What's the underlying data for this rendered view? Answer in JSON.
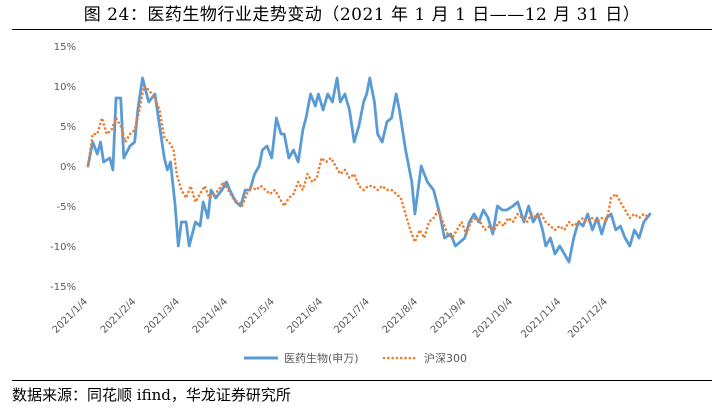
{
  "title": "图 24：医药生物行业走势变动（2021 年 1 月 1 日——12 月 31 日）",
  "source": "数据来源：同花顺 ifind，华龙证券研究所",
  "chart_data": {
    "type": "line",
    "ylim": [
      -15,
      15
    ],
    "yticks": [
      15,
      10,
      5,
      0,
      -5,
      -10,
      -15
    ],
    "ytick_labels": [
      "15%",
      "10%",
      "5%",
      "0%",
      "-5%",
      "-10%",
      "-15%"
    ],
    "xlim": [
      "2021-01-04",
      "2021-12-31"
    ],
    "xtick_labels": [
      "2021/1/4",
      "2021/2/4",
      "2021/3/4",
      "2021/4/4",
      "2021/5/4",
      "2021/6/4",
      "2021/7/4",
      "2021/8/4",
      "2021/9/4",
      "2021/10/4",
      "2021/11/4",
      "2021/12/4"
    ],
    "legend_position": "bottom",
    "series": [
      {
        "name": "医药生物(申万)",
        "color": "#5B9BD5",
        "style": "solid",
        "points": [
          [
            "2021-01-04",
            0
          ],
          [
            "2021-01-07",
            3
          ],
          [
            "2021-01-10",
            1.5
          ],
          [
            "2021-01-12",
            3
          ],
          [
            "2021-01-14",
            0.5
          ],
          [
            "2021-01-18",
            1
          ],
          [
            "2021-01-20",
            -0.5
          ],
          [
            "2021-01-22",
            8.5
          ],
          [
            "2021-01-25",
            8.5
          ],
          [
            "2021-01-27",
            1
          ],
          [
            "2021-01-31",
            2.5
          ],
          [
            "2021-02-03",
            3
          ],
          [
            "2021-02-05",
            7
          ],
          [
            "2021-02-08",
            11
          ],
          [
            "2021-02-12",
            8
          ],
          [
            "2021-02-16",
            9
          ],
          [
            "2021-02-19",
            5
          ],
          [
            "2021-02-22",
            1
          ],
          [
            "2021-02-24",
            -0.5
          ],
          [
            "2021-02-26",
            0.5
          ],
          [
            "2021-03-01",
            -5
          ],
          [
            "2021-03-03",
            -10
          ],
          [
            "2021-03-05",
            -7
          ],
          [
            "2021-03-08",
            -7
          ],
          [
            "2021-03-10",
            -10
          ],
          [
            "2021-03-14",
            -7
          ],
          [
            "2021-03-17",
            -7.5
          ],
          [
            "2021-03-19",
            -4.5
          ],
          [
            "2021-03-22",
            -6.5
          ],
          [
            "2021-03-24",
            -3
          ],
          [
            "2021-03-27",
            -4
          ],
          [
            "2021-03-31",
            -3
          ],
          [
            "2021-04-03",
            -2
          ],
          [
            "2021-04-05",
            -3
          ],
          [
            "2021-04-09",
            -4.5
          ],
          [
            "2021-04-12",
            -5
          ],
          [
            "2021-04-15",
            -3
          ],
          [
            "2021-04-18",
            -3
          ],
          [
            "2021-04-21",
            -1
          ],
          [
            "2021-04-24",
            0
          ],
          [
            "2021-04-26",
            2
          ],
          [
            "2021-04-29",
            2.5
          ],
          [
            "2021-05-02",
            1
          ],
          [
            "2021-05-05",
            6
          ],
          [
            "2021-05-08",
            4
          ],
          [
            "2021-05-10",
            4
          ],
          [
            "2021-05-13",
            1
          ],
          [
            "2021-05-16",
            2
          ],
          [
            "2021-05-19",
            0.5
          ],
          [
            "2021-05-22",
            4.5
          ],
          [
            "2021-05-24",
            6
          ],
          [
            "2021-05-27",
            9
          ],
          [
            "2021-05-30",
            7.5
          ],
          [
            "2021-06-01",
            9
          ],
          [
            "2021-06-04",
            7
          ],
          [
            "2021-06-07",
            9
          ],
          [
            "2021-06-10",
            8
          ],
          [
            "2021-06-13",
            11
          ],
          [
            "2021-06-15",
            8
          ],
          [
            "2021-06-18",
            9
          ],
          [
            "2021-06-21",
            7
          ],
          [
            "2021-06-24",
            3
          ],
          [
            "2021-06-27",
            5
          ],
          [
            "2021-06-30",
            8
          ],
          [
            "2021-07-02",
            9
          ],
          [
            "2021-07-04",
            11
          ],
          [
            "2021-07-07",
            8
          ],
          [
            "2021-07-09",
            4
          ],
          [
            "2021-07-12",
            3
          ],
          [
            "2021-07-15",
            5.5
          ],
          [
            "2021-07-18",
            6
          ],
          [
            "2021-07-21",
            9
          ],
          [
            "2021-07-23",
            7
          ],
          [
            "2021-07-27",
            2
          ],
          [
            "2021-07-31",
            -2
          ],
          [
            "2021-08-02",
            -6
          ],
          [
            "2021-08-06",
            0
          ],
          [
            "2021-08-10",
            -2
          ],
          [
            "2021-08-14",
            -3
          ],
          [
            "2021-08-18",
            -6
          ],
          [
            "2021-08-21",
            -9
          ],
          [
            "2021-08-25",
            -8.5
          ],
          [
            "2021-08-28",
            -10
          ],
          [
            "2021-08-31",
            -9.5
          ],
          [
            "2021-09-03",
            -9
          ],
          [
            "2021-09-06",
            -7
          ],
          [
            "2021-09-09",
            -6
          ],
          [
            "2021-09-12",
            -7
          ],
          [
            "2021-09-15",
            -5.5
          ],
          [
            "2021-09-18",
            -6.5
          ],
          [
            "2021-09-21",
            -8.5
          ],
          [
            "2021-09-24",
            -5
          ],
          [
            "2021-09-27",
            -5.5
          ],
          [
            "2021-09-30",
            -5.5
          ],
          [
            "2021-10-04",
            -5
          ],
          [
            "2021-10-07",
            -4.5
          ],
          [
            "2021-10-11",
            -7
          ],
          [
            "2021-10-14",
            -5
          ],
          [
            "2021-10-17",
            -7
          ],
          [
            "2021-10-20",
            -6
          ],
          [
            "2021-10-23",
            -8
          ],
          [
            "2021-10-25",
            -10
          ],
          [
            "2021-10-28",
            -9
          ],
          [
            "2021-10-31",
            -11
          ],
          [
            "2021-11-03",
            -10
          ],
          [
            "2021-11-06",
            -11
          ],
          [
            "2021-11-09",
            -12
          ],
          [
            "2021-11-12",
            -9
          ],
          [
            "2021-11-15",
            -7
          ],
          [
            "2021-11-18",
            -7.5
          ],
          [
            "2021-11-21",
            -6
          ],
          [
            "2021-11-24",
            -8
          ],
          [
            "2021-11-27",
            -6.5
          ],
          [
            "2021-11-30",
            -8.5
          ],
          [
            "2021-12-03",
            -6.5
          ],
          [
            "2021-12-06",
            -6
          ],
          [
            "2021-12-09",
            -8
          ],
          [
            "2021-12-12",
            -7.5
          ],
          [
            "2021-12-15",
            -9
          ],
          [
            "2021-12-18",
            -10
          ],
          [
            "2021-12-21",
            -8
          ],
          [
            "2021-12-24",
            -9
          ],
          [
            "2021-12-27",
            -7
          ],
          [
            "2021-12-31",
            -6
          ]
        ]
      },
      {
        "name": "沪深300",
        "color": "#ED7D31",
        "style": "dotted",
        "points": [
          [
            "2021-01-04",
            0
          ],
          [
            "2021-01-07",
            4
          ],
          [
            "2021-01-10",
            4
          ],
          [
            "2021-01-13",
            6
          ],
          [
            "2021-01-16",
            4
          ],
          [
            "2021-01-19",
            4.5
          ],
          [
            "2021-01-22",
            6
          ],
          [
            "2021-01-25",
            5
          ],
          [
            "2021-01-28",
            3
          ],
          [
            "2021-01-31",
            4
          ],
          [
            "2021-02-03",
            4.5
          ],
          [
            "2021-02-06",
            7
          ],
          [
            "2021-02-09",
            10
          ],
          [
            "2021-02-12",
            9.5
          ],
          [
            "2021-02-16",
            8.5
          ],
          [
            "2021-02-19",
            7
          ],
          [
            "2021-02-22",
            3.5
          ],
          [
            "2021-02-25",
            3
          ],
          [
            "2021-02-28",
            2
          ],
          [
            "2021-03-02",
            -1
          ],
          [
            "2021-03-05",
            -3
          ],
          [
            "2021-03-08",
            -4
          ],
          [
            "2021-03-11",
            -2.5
          ],
          [
            "2021-03-14",
            -4.5
          ],
          [
            "2021-03-17",
            -3.5
          ],
          [
            "2021-03-20",
            -2.5
          ],
          [
            "2021-03-23",
            -4
          ],
          [
            "2021-03-26",
            -3.5
          ],
          [
            "2021-03-29",
            -3
          ],
          [
            "2021-04-01",
            -2
          ],
          [
            "2021-04-04",
            -3
          ],
          [
            "2021-04-07",
            -4
          ],
          [
            "2021-04-10",
            -4.5
          ],
          [
            "2021-04-13",
            -5
          ],
          [
            "2021-04-16",
            -3.5
          ],
          [
            "2021-04-19",
            -2.5
          ],
          [
            "2021-04-22",
            -3
          ],
          [
            "2021-04-25",
            -2.5
          ],
          [
            "2021-04-28",
            -3
          ],
          [
            "2021-05-01",
            -3.5
          ],
          [
            "2021-05-04",
            -3
          ],
          [
            "2021-05-07",
            -4
          ],
          [
            "2021-05-10",
            -5
          ],
          [
            "2021-05-13",
            -4
          ],
          [
            "2021-05-16",
            -3.5
          ],
          [
            "2021-05-19",
            -2
          ],
          [
            "2021-05-22",
            -3
          ],
          [
            "2021-05-25",
            -1
          ],
          [
            "2021-05-28",
            -2
          ],
          [
            "2021-05-31",
            -1.5
          ],
          [
            "2021-06-03",
            1
          ],
          [
            "2021-06-06",
            0.5
          ],
          [
            "2021-06-09",
            1
          ],
          [
            "2021-06-12",
            0
          ],
          [
            "2021-06-15",
            -1
          ],
          [
            "2021-06-18",
            -0.5
          ],
          [
            "2021-06-21",
            -1.5
          ],
          [
            "2021-06-24",
            -1
          ],
          [
            "2021-06-27",
            -2.5
          ],
          [
            "2021-06-30",
            -3
          ],
          [
            "2021-07-03",
            -2.5
          ],
          [
            "2021-07-06",
            -2.5
          ],
          [
            "2021-07-09",
            -3
          ],
          [
            "2021-07-12",
            -2.5
          ],
          [
            "2021-07-15",
            -3
          ],
          [
            "2021-07-18",
            -3
          ],
          [
            "2021-07-21",
            -3.5
          ],
          [
            "2021-07-24",
            -4
          ],
          [
            "2021-07-27",
            -6
          ],
          [
            "2021-07-30",
            -8
          ],
          [
            "2021-08-02",
            -9.5
          ],
          [
            "2021-08-05",
            -8
          ],
          [
            "2021-08-08",
            -9
          ],
          [
            "2021-08-11",
            -7
          ],
          [
            "2021-08-14",
            -6.5
          ],
          [
            "2021-08-17",
            -5.5
          ],
          [
            "2021-08-20",
            -7
          ],
          [
            "2021-08-23",
            -8.5
          ],
          [
            "2021-08-26",
            -9
          ],
          [
            "2021-08-29",
            -8
          ],
          [
            "2021-09-01",
            -7
          ],
          [
            "2021-09-04",
            -8.5
          ],
          [
            "2021-09-07",
            -7
          ],
          [
            "2021-09-10",
            -6.5
          ],
          [
            "2021-09-13",
            -7
          ],
          [
            "2021-09-16",
            -8
          ],
          [
            "2021-09-19",
            -7.5
          ],
          [
            "2021-09-22",
            -8
          ],
          [
            "2021-09-25",
            -7
          ],
          [
            "2021-09-28",
            -7.5
          ],
          [
            "2021-10-01",
            -6.5
          ],
          [
            "2021-10-04",
            -7
          ],
          [
            "2021-10-07",
            -6
          ],
          [
            "2021-10-10",
            -6.5
          ],
          [
            "2021-10-13",
            -7
          ],
          [
            "2021-10-16",
            -6
          ],
          [
            "2021-10-19",
            -6.5
          ],
          [
            "2021-10-22",
            -6
          ],
          [
            "2021-10-25",
            -7
          ],
          [
            "2021-10-28",
            -7.5
          ],
          [
            "2021-10-31",
            -8
          ],
          [
            "2021-11-03",
            -7.5
          ],
          [
            "2021-11-06",
            -8
          ],
          [
            "2021-11-09",
            -7
          ],
          [
            "2021-11-12",
            -7.5
          ],
          [
            "2021-11-15",
            -7
          ],
          [
            "2021-11-18",
            -6.5
          ],
          [
            "2021-11-21",
            -7
          ],
          [
            "2021-11-24",
            -6.5
          ],
          [
            "2021-11-27",
            -7
          ],
          [
            "2021-11-30",
            -6.5
          ],
          [
            "2021-12-03",
            -7
          ],
          [
            "2021-12-06",
            -4
          ],
          [
            "2021-12-09",
            -3.5
          ],
          [
            "2021-12-12",
            -4.5
          ],
          [
            "2021-12-15",
            -5.5
          ],
          [
            "2021-12-18",
            -6.5
          ],
          [
            "2021-12-21",
            -6
          ],
          [
            "2021-12-24",
            -6.5
          ],
          [
            "2021-12-27",
            -6
          ],
          [
            "2021-12-31",
            -6.5
          ]
        ]
      }
    ]
  }
}
